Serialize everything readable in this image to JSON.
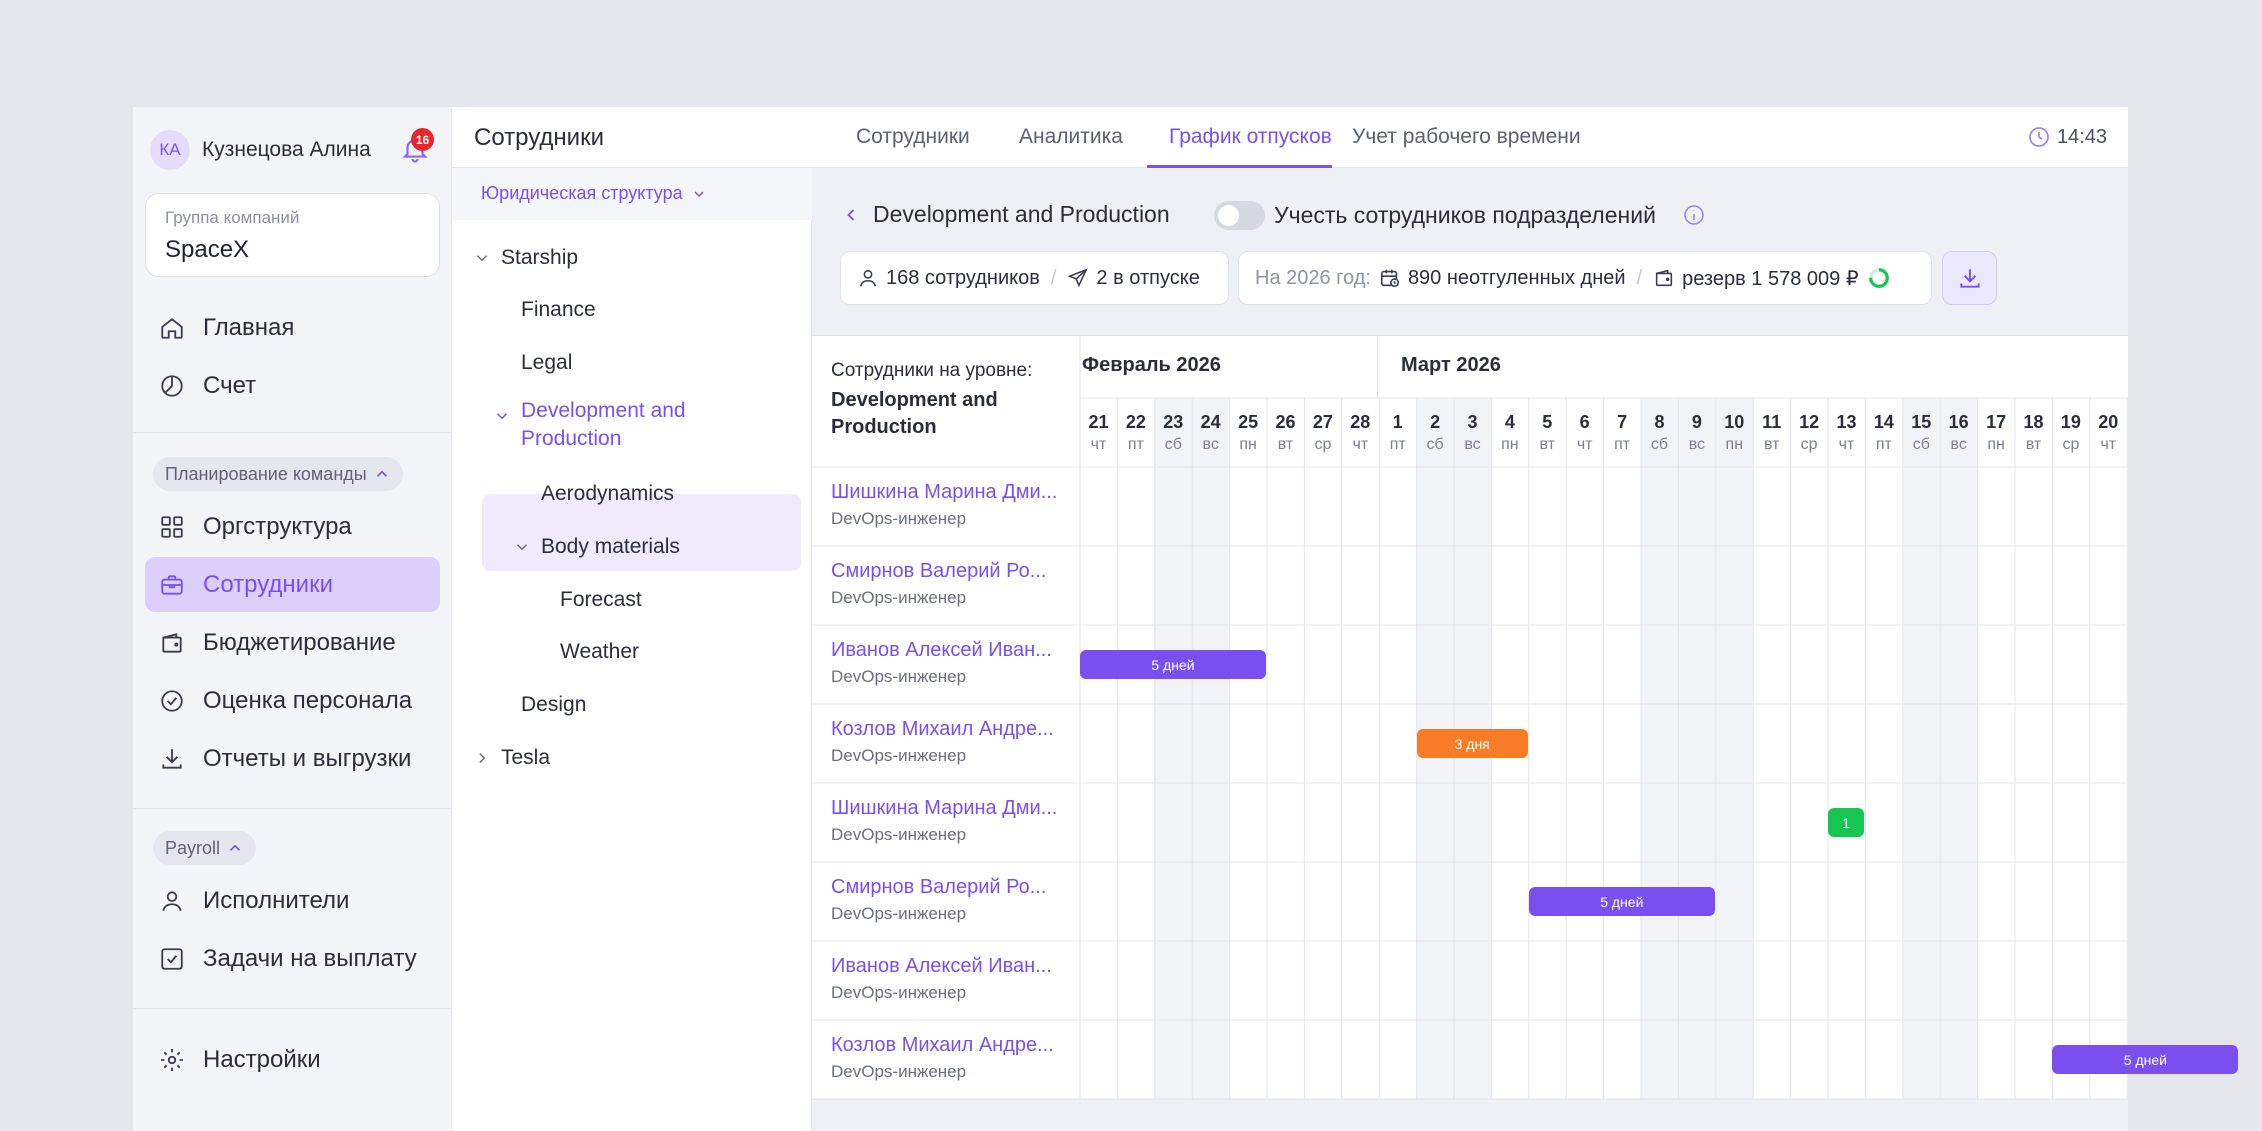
{
  "user": {
    "initials": "КА",
    "name": "Кузнецова Алина",
    "notifications": "16"
  },
  "company": {
    "label": "Группа компаний",
    "value": "SpaceX"
  },
  "nav": {
    "home": "Главная",
    "account": "Счет",
    "team_group": "Планирование команды",
    "org": "Оргструктура",
    "employees": "Сотрудники",
    "budget": "Бюджетирование",
    "review": "Оценка персонала",
    "reports": "Отчеты и выгрузки",
    "payroll_group": "Payroll",
    "contractors": "Исполнители",
    "payouts": "Задачи на выплату",
    "settings": "Настройки"
  },
  "header": {
    "title": "Сотрудники",
    "tabs": [
      "Сотрудники",
      "Аналитика",
      "График отпусков",
      "Учет рабочего времени"
    ],
    "time": "14:43"
  },
  "tree": {
    "dropdown": "Юридическая структура",
    "items": [
      "Starship",
      "Finance",
      "Legal",
      "Development and Production",
      "Aerodynamics",
      "Body materials",
      "Forecast",
      "Weather",
      "Design",
      "Tesla"
    ]
  },
  "main": {
    "title": "Development and Production",
    "toggle_label": "Учесть сотрудников подразделений",
    "employees_count": "168 сотрудников",
    "on_vacation": "2 в отпуске",
    "year_label": "На 2026 год:",
    "unused_days": "890 неотгуленных дней",
    "reserve": "резерв 1 578 009 ₽",
    "reserve_progress": 0.75
  },
  "schedule": {
    "head_label": "Сотрудники на уровне:",
    "head_unit": "Development and Production",
    "months": [
      "Февраль 2026",
      "Март 2026"
    ],
    "days": [
      {
        "n": "21",
        "w": "чт",
        "we": false
      },
      {
        "n": "22",
        "w": "пт",
        "we": false
      },
      {
        "n": "23",
        "w": "сб",
        "we": true
      },
      {
        "n": "24",
        "w": "вс",
        "we": true
      },
      {
        "n": "25",
        "w": "пн",
        "we": false
      },
      {
        "n": "26",
        "w": "вт",
        "we": false
      },
      {
        "n": "27",
        "w": "ср",
        "we": false
      },
      {
        "n": "28",
        "w": "чт",
        "we": false
      },
      {
        "n": "1",
        "w": "пт",
        "we": false
      },
      {
        "n": "2",
        "w": "сб",
        "we": true
      },
      {
        "n": "3",
        "w": "вс",
        "we": true
      },
      {
        "n": "4",
        "w": "пн",
        "we": false
      },
      {
        "n": "5",
        "w": "вт",
        "we": false
      },
      {
        "n": "6",
        "w": "чт",
        "we": false
      },
      {
        "n": "7",
        "w": "пт",
        "we": false
      },
      {
        "n": "8",
        "w": "сб",
        "we": true
      },
      {
        "n": "9",
        "w": "вс",
        "we": true
      },
      {
        "n": "10",
        "w": "пн",
        "we": true
      },
      {
        "n": "11",
        "w": "вт",
        "we": false
      },
      {
        "n": "12",
        "w": "ср",
        "we": false
      },
      {
        "n": "13",
        "w": "чт",
        "we": false
      },
      {
        "n": "14",
        "w": "пт",
        "we": false
      },
      {
        "n": "15",
        "w": "сб",
        "we": true
      },
      {
        "n": "16",
        "w": "вс",
        "we": true
      },
      {
        "n": "17",
        "w": "пн",
        "we": false
      },
      {
        "n": "18",
        "w": "вт",
        "we": false
      },
      {
        "n": "19",
        "w": "ср",
        "we": false
      },
      {
        "n": "20",
        "w": "чт",
        "we": false
      }
    ],
    "rows": [
      {
        "name": "Шишкина Марина Дми...",
        "role": "DevOps-инженер"
      },
      {
        "name": "Смирнов Валерий Ро...",
        "role": "DevOps-инженер"
      },
      {
        "name": "Иванов Алексей Иван...",
        "role": "DevOps-инженер"
      },
      {
        "name": "Козлов Михаил Андре...",
        "role": "DevOps-инженер"
      },
      {
        "name": "Шишкина Марина Дми...",
        "role": "DevOps-инженер"
      },
      {
        "name": "Смирнов Валерий Ро...",
        "role": "DevOps-инженер"
      },
      {
        "name": "Иванов Алексей Иван...",
        "role": "DevOps-инженер"
      },
      {
        "name": "Козлов Михаил Андре...",
        "role": "DevOps-инженер"
      }
    ],
    "vacations": [
      {
        "row": 2,
        "start": 0,
        "len": 5,
        "label": "5 дней",
        "color": "#7a4ff0"
      },
      {
        "row": 3,
        "start": 9,
        "len": 3,
        "label": "3 дня",
        "color": "#f97d26"
      },
      {
        "row": 4,
        "start": 20,
        "len": 1,
        "label": "1",
        "color": "#16c653"
      },
      {
        "row": 5,
        "start": 12,
        "len": 5,
        "label": "5 дней",
        "color": "#7a4ff0"
      },
      {
        "row": 7,
        "start": 26,
        "len": 5,
        "label": "5 дней",
        "color": "#7a4ff0"
      }
    ]
  }
}
